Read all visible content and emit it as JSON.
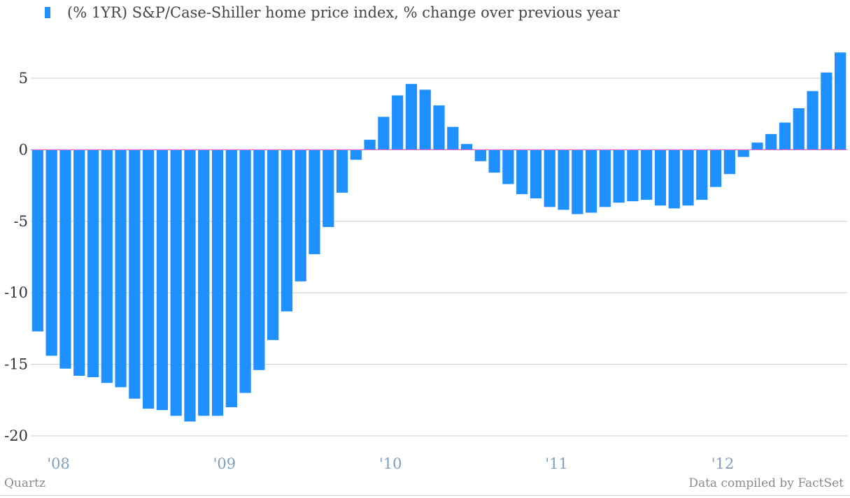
{
  "chart_data": {
    "type": "bar",
    "series": [
      {
        "name": "(% 1YR) S&P/Case-Shiller home price index, % change over previous year",
        "color": "#1e90ff",
        "values": [
          -12.7,
          -14.4,
          -15.3,
          -15.8,
          -15.9,
          -16.3,
          -16.6,
          -17.4,
          -18.1,
          -18.2,
          -18.6,
          -19.0,
          -18.6,
          -18.6,
          -18.0,
          -17.0,
          -15.4,
          -13.3,
          -11.3,
          -9.2,
          -7.3,
          -5.4,
          -3.0,
          -0.7,
          0.7,
          2.3,
          3.8,
          4.6,
          4.2,
          3.1,
          1.6,
          0.4,
          -0.8,
          -1.6,
          -2.4,
          -3.1,
          -3.4,
          -4.0,
          -4.2,
          -4.5,
          -4.4,
          -4.0,
          -3.7,
          -3.6,
          -3.5,
          -3.9,
          -4.1,
          -3.9,
          -3.5,
          -2.6,
          -1.7,
          -0.5,
          0.5,
          1.1,
          1.9,
          2.9,
          4.1,
          5.4,
          6.8
        ]
      }
    ],
    "x_tick_labels": [
      "'08",
      "'09",
      "'10",
      "'11",
      "'12"
    ],
    "y_ticks": [
      5,
      0,
      -5,
      -10,
      -15,
      -20
    ],
    "ylim": [
      -21.5,
      7.5
    ],
    "grid": true,
    "legend": "top-left",
    "baseline_color": "#e070c0",
    "grid_color": "#cccccc",
    "y_tick_color": "#333333",
    "x_tick_color": "#7f9fbf"
  },
  "footer": {
    "source_left": "Quartz",
    "source_right": "Data compiled by FactSet"
  }
}
